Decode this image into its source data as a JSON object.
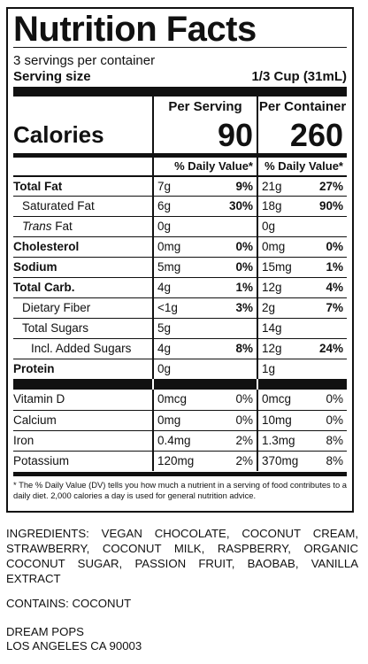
{
  "title": "Nutrition Facts",
  "servings_per_container": "3 servings per container",
  "serving_size_label": "Serving size",
  "serving_size_value": "1/3 Cup (31mL)",
  "columns": {
    "per_serving": "Per Serving",
    "per_container": "Per Container"
  },
  "calories": {
    "label": "Calories",
    "per_serving": "90",
    "per_container": "260"
  },
  "dv_header": "% Daily Value*",
  "nutrients": [
    {
      "label": "Total Fat",
      "s_amt": "7g",
      "s_pct": "9%",
      "c_amt": "21g",
      "c_pct": "27%"
    },
    {
      "label": "Saturated Fat",
      "s_amt": "6g",
      "s_pct": "30%",
      "c_amt": "18g",
      "c_pct": "90%"
    },
    {
      "label_italic": "Trans",
      "label_rest": " Fat",
      "s_amt": "0g",
      "c_amt": "0g"
    },
    {
      "label": "Cholesterol",
      "s_amt": "0mg",
      "s_pct": "0%",
      "c_amt": "0mg",
      "c_pct": "0%"
    },
    {
      "label": "Sodium",
      "s_amt": "5mg",
      "s_pct": "0%",
      "c_amt": "15mg",
      "c_pct": "1%"
    },
    {
      "label": "Total Carb.",
      "s_amt": "4g",
      "s_pct": "1%",
      "c_amt": "12g",
      "c_pct": "4%"
    },
    {
      "label": "Dietary Fiber",
      "s_amt": "<1g",
      "s_pct": "3%",
      "c_amt": "2g",
      "c_pct": "7%"
    },
    {
      "label": "Total Sugars",
      "s_amt": "5g",
      "c_amt": "14g"
    },
    {
      "label": "Incl. Added Sugars",
      "s_amt": "4g",
      "s_pct": "8%",
      "c_amt": "12g",
      "c_pct": "24%"
    },
    {
      "label": "Protein",
      "s_amt": "0g",
      "c_amt": "1g"
    }
  ],
  "vitamins": [
    {
      "label": "Vitamin D",
      "s_amt": "0mcg",
      "s_pct": "0%",
      "c_amt": "0mcg",
      "c_pct": "0%"
    },
    {
      "label": "Calcium",
      "s_amt": "0mg",
      "s_pct": "0%",
      "c_amt": "10mg",
      "c_pct": "0%"
    },
    {
      "label": "Iron",
      "s_amt": "0.4mg",
      "s_pct": "2%",
      "c_amt": "1.3mg",
      "c_pct": "8%"
    },
    {
      "label": "Potassium",
      "s_amt": "120mg",
      "s_pct": "2%",
      "c_amt": "370mg",
      "c_pct": "8%"
    }
  ],
  "footnote": "* The % Daily Value (DV) tells you how much a nutrient in a serving of food contributes to a daily diet. 2,000 calories a day is used for general nutrition advice.",
  "ingredients": "INGREDIENTS: VEGAN CHOCOLATE, COCONUT CREAM, STRAWBERRY, COCONUT MILK, RASPBERRY, ORGANIC COCONUT SUGAR, PASSION FRUIT, BAOBAB, VANILLA EXTRACT",
  "contains": "CONTAINS: COCONUT",
  "maker_name": "DREAM POPS",
  "maker_address": "LOS ANGELES CA 90003"
}
